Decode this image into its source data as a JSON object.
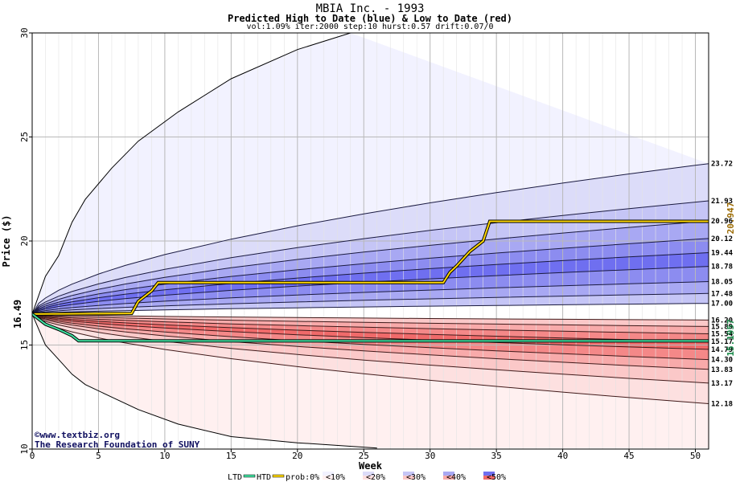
{
  "chart_data": {
    "type": "area",
    "title": "MBIA Inc. - 1993",
    "subtitle": "Predicted High to Date (blue) &  Low to Date (red)",
    "params": "vol:1.09% iter:2000 step:10 hurst:0.57 drift:0.07/0",
    "xlabel": "Week",
    "ylabel": "Price ($)",
    "xlim": [
      0,
      51
    ],
    "ylim": [
      10,
      30
    ],
    "x_ticks": [
      0,
      5,
      10,
      15,
      20,
      25,
      30,
      35,
      40,
      45,
      50
    ],
    "y_ticks": [
      10,
      15,
      20,
      25,
      30
    ],
    "grid": true,
    "start_price": 16.49,
    "start_label": "16.49",
    "weeks": [
      0,
      0.5,
      1,
      2,
      3,
      5,
      7,
      10,
      15,
      20,
      25,
      30,
      35,
      40,
      45,
      50,
      51
    ],
    "upper_quantiles": [
      {
        "label": "23.72",
        "end": 23.72,
        "zone": "0%"
      },
      {
        "label": "21.93",
        "end": 21.93,
        "zone": "10%"
      },
      {
        "label": "20.96",
        "end": 20.96,
        "zone": "20%"
      },
      {
        "label": "20.12",
        "end": 20.12,
        "zone": "30%"
      },
      {
        "label": "19.44",
        "end": 19.44,
        "zone": "40%"
      },
      {
        "label": "18.78",
        "end": 18.78,
        "zone": "50%"
      },
      {
        "label": "18.05",
        "end": 18.05,
        "zone": "40%"
      },
      {
        "label": "17.48",
        "end": 17.48,
        "zone": "30%"
      },
      {
        "label": "17.00",
        "end": 17.0,
        "zone": "20%"
      }
    ],
    "lower_quantiles": [
      {
        "label": "16.20",
        "end": 16.2,
        "zone": "20%"
      },
      {
        "label": "15.89",
        "end": 15.89,
        "zone": "30%"
      },
      {
        "label": "15.54",
        "end": 15.54,
        "zone": "40%"
      },
      {
        "label": "15.17",
        "end": 15.17,
        "zone": "50%"
      },
      {
        "label": "14.79",
        "end": 14.79,
        "zone": "50%"
      },
      {
        "label": "14.30",
        "end": 14.3,
        "zone": "40%"
      },
      {
        "label": "13.83",
        "end": 13.83,
        "zone": "30%"
      },
      {
        "label": "13.17",
        "end": 13.17,
        "zone": "20%"
      },
      {
        "label": "12.18",
        "end": 12.18,
        "zone": "10%"
      }
    ],
    "outer_upper": [
      16.49,
      18.3,
      19.3,
      20.9,
      22.0,
      23.5,
      24.8,
      26.2,
      27.8,
      29.2,
      30.0
    ],
    "outer_upper_weeks": [
      0,
      1,
      2,
      3,
      4,
      6,
      8,
      11,
      15,
      20,
      24
    ],
    "outer_lower": [
      16.49,
      15.0,
      14.3,
      13.6,
      13.1,
      12.5,
      11.9,
      11.2,
      10.6,
      10.3,
      10.05
    ],
    "outer_lower_weeks": [
      0,
      1,
      2,
      3,
      4,
      6,
      8,
      11,
      15,
      20,
      26
    ],
    "htd_series": {
      "name": "HTD",
      "final_label": "20.947",
      "points": [
        [
          0,
          16.49
        ],
        [
          7.5,
          16.52
        ],
        [
          8,
          17.1
        ],
        [
          9,
          17.6
        ],
        [
          9.5,
          18.0
        ],
        [
          20,
          18.0
        ],
        [
          31,
          18.0
        ],
        [
          31.5,
          18.5
        ],
        [
          32,
          18.8
        ],
        [
          33,
          19.5
        ],
        [
          34,
          20.0
        ],
        [
          34.5,
          20.947
        ],
        [
          51,
          20.947
        ]
      ]
    },
    "ltd_series": {
      "name": "LTD",
      "final_label": "15.1957",
      "points": [
        [
          0,
          16.49
        ],
        [
          1,
          16.0
        ],
        [
          2,
          15.75
        ],
        [
          3,
          15.45
        ],
        [
          3.5,
          15.2
        ],
        [
          51,
          15.1957
        ]
      ]
    },
    "colors": {
      "htd": "#ffd700",
      "ltd": "#40e0a0",
      "htd_label": "#9b6a00",
      "ltd_label": "#1a8a4a",
      "blue_zones": [
        "#f2f2ff",
        "#dcdcf9",
        "#c5c5f6",
        "#a8a8f3",
        "#8c8cf0",
        "#6f6ff0"
      ],
      "red_zones": [
        "#fff0f0",
        "#fde0e0",
        "#fbc8c8",
        "#f8aaaa",
        "#f48888",
        "#f06a6a"
      ]
    },
    "legend": {
      "ltd": "LTD",
      "htd": "HTD",
      "prob": "prob:0%",
      "zones": [
        "<10%",
        "<20%",
        "<30%",
        "<40%",
        "<50%"
      ]
    },
    "credit_line1": "www.textbiz.org",
    "credit_line2": "The Research Foundation of SUNY"
  }
}
